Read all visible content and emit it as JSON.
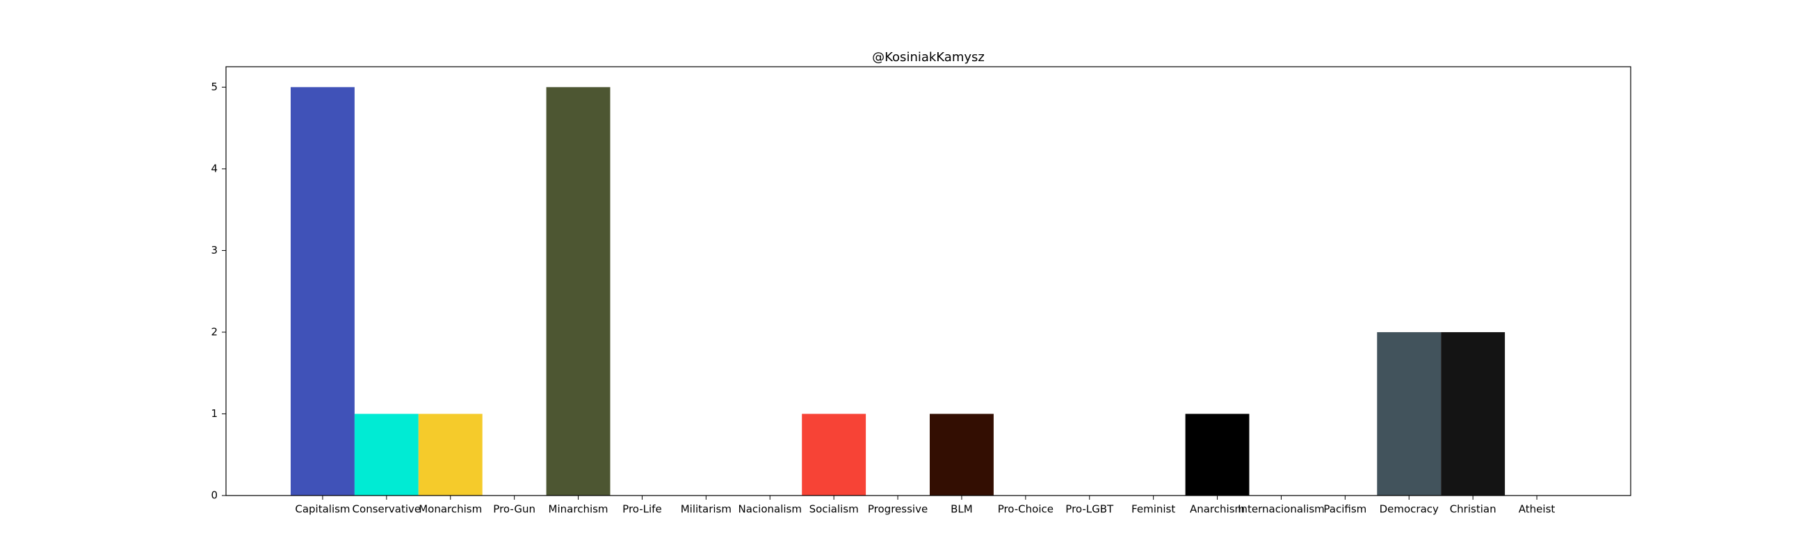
{
  "chart_data": {
    "type": "bar",
    "title": "@KosiniakKamysz",
    "xlabel": "",
    "ylabel": "",
    "ylim": [
      0,
      5.25
    ],
    "yticks": [
      0,
      1,
      2,
      3,
      4,
      5
    ],
    "grid": false,
    "categories": [
      "Capitalism",
      "Conservative",
      "Monarchism",
      "Pro-Gun",
      "Minarchism",
      "Pro-Life",
      "Militarism",
      "Nacionalism",
      "Socialism",
      "Progressive",
      "BLM",
      "Pro-Choice",
      "Pro-LGBT",
      "Feminist",
      "Anarchism",
      "Internacionalism",
      "Pacifism",
      "Democracy",
      "Christian",
      "Atheist"
    ],
    "values": [
      5,
      1,
      1,
      0,
      5,
      0,
      0,
      0,
      1,
      0,
      1,
      0,
      0,
      0,
      1,
      0,
      0,
      2,
      2,
      0
    ],
    "colors": [
      "#4052b8",
      "#00ebd4",
      "#f5cb2b",
      "#ffffff",
      "#4d5632",
      "#ffffff",
      "#ffffff",
      "#ffffff",
      "#f74336",
      "#ffffff",
      "#330e02",
      "#ffffff",
      "#ffffff",
      "#ffffff",
      "#000000",
      "#ffffff",
      "#ffffff",
      "#42535c",
      "#141414",
      "#ffffff"
    ]
  }
}
